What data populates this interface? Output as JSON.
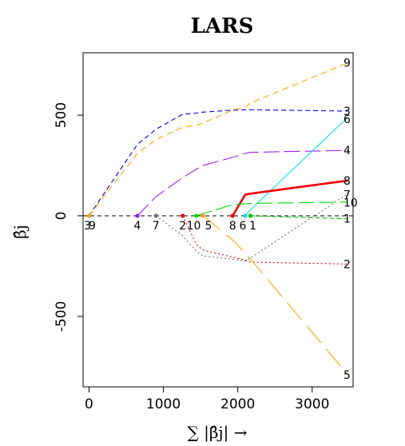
{
  "chart_data": {
    "type": "line",
    "title": "LARS",
    "xlabel": "∑ |β̂j| →",
    "ylabel": "β̂j",
    "xlim": [
      -80,
      3550
    ],
    "ylim": [
      -850,
      810
    ],
    "xticks": [
      0,
      1000,
      2000,
      3000
    ],
    "yticks": [
      -500,
      0,
      500
    ],
    "grid": false,
    "legend": "none",
    "steps": [
      0,
      0,
      650,
      900,
      1260,
      1440,
      1530,
      1930,
      2100,
      2170,
      3480
    ],
    "steps_top_labels": [
      "3",
      "9",
      "4",
      "7",
      "2",
      "10",
      "5",
      "8",
      "6",
      "1",
      ""
    ],
    "series": [
      {
        "label": "1",
        "color": "#00c000",
        "dash": "6,3",
        "x": [
          2170,
          3480
        ],
        "y": [
          0,
          -15
        ]
      },
      {
        "label": "2",
        "color": "#e00000",
        "dash": "2,3",
        "x": [
          1260,
          1440,
          1530,
          1930,
          2100,
          2170,
          3480
        ],
        "y": [
          0,
          -140,
          -170,
          -205,
          -220,
          -230,
          -240
        ]
      },
      {
        "label": "3",
        "color": "#0000e0",
        "dash": "6,4",
        "x": [
          0,
          650,
          900,
          1260,
          1440,
          1530,
          1930,
          2100,
          2170,
          3480
        ],
        "y": [
          0,
          355,
          430,
          505,
          510,
          515,
          525,
          527,
          527,
          520
        ]
      },
      {
        "label": "4",
        "color": "#a020f0",
        "dash": "20,6",
        "x": [
          650,
          900,
          1260,
          1440,
          1530,
          1930,
          2100,
          2170,
          3480
        ],
        "y": [
          0,
          95,
          190,
          230,
          250,
          290,
          310,
          315,
          325
        ]
      },
      {
        "label": "5",
        "color": "#ffa500",
        "dash": "28,10",
        "x": [
          1530,
          1930,
          2100,
          2170,
          3480
        ],
        "y": [
          0,
          -120,
          -185,
          -215,
          -790
        ]
      },
      {
        "label": "6",
        "color": "#00e0f0",
        "dash": "",
        "x": [
          2100,
          2170,
          3480
        ],
        "y": [
          0,
          30,
          490
        ]
      },
      {
        "label": "7",
        "color": "#707070",
        "dash": "2,3",
        "x": [
          900,
          1260,
          1440,
          1530,
          1930,
          2100,
          2170,
          3480
        ],
        "y": [
          0,
          -100,
          -175,
          -200,
          -215,
          -225,
          -210,
          110
        ]
      },
      {
        "label": "8",
        "color": "#ee0000",
        "dash": "",
        "width": 2.6,
        "x": [
          1930,
          2100,
          2170,
          3480
        ],
        "y": [
          0,
          105,
          110,
          175
        ]
      },
      {
        "label": "9",
        "color": "#ffa500",
        "dash": "8,5",
        "x": [
          0,
          650,
          900,
          1260,
          1440,
          1530,
          1930,
          2100,
          2170,
          3480
        ],
        "y": [
          0,
          310,
          380,
          440,
          450,
          460,
          525,
          540,
          560,
          760
        ]
      },
      {
        "label": "10",
        "color": "#00dd00",
        "dash": "20,6",
        "x": [
          1440,
          1530,
          1930,
          2100,
          2170,
          3480
        ],
        "y": [
          0,
          10,
          55,
          60,
          62,
          68
        ]
      }
    ],
    "right_labels": [
      {
        "label": "9",
        "y": 760
      },
      {
        "label": "3",
        "y": 520
      },
      {
        "label": "6",
        "y": 480
      },
      {
        "label": "4",
        "y": 325
      },
      {
        "label": "8",
        "y": 175
      },
      {
        "label": "7",
        "y": 105
      },
      {
        "label": "10",
        "y": 65
      },
      {
        "label": "1",
        "y": -15
      },
      {
        "label": "2",
        "y": -240
      },
      {
        "label": "5",
        "y": -790
      }
    ]
  }
}
